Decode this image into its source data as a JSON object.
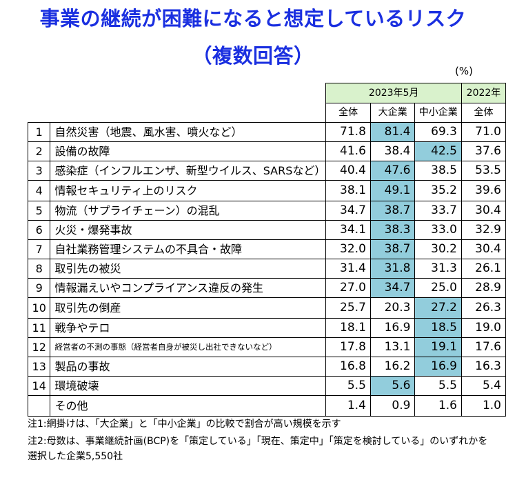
{
  "title_line1": "事業の継続が困難になると想定しているリスク",
  "title_line2": "（複数回答）",
  "unit": "(%)",
  "highlight_color": "#92cddc",
  "header_color": "#d9f2cc",
  "chart_data": {
    "type": "table",
    "group_headers": [
      "2023年5月",
      "2022年"
    ],
    "columns": [
      "全体",
      "大企業",
      "中小企業",
      "全体"
    ],
    "rows": [
      {
        "rank": "1",
        "item": "自然災害（地震、風水害、噴火など）",
        "values": [
          "71.8",
          "81.4",
          "69.3",
          "71.0"
        ],
        "highlight": "large"
      },
      {
        "rank": "2",
        "item": "設備の故障",
        "values": [
          "41.6",
          "38.4",
          "42.5",
          "37.6"
        ],
        "highlight": "sme"
      },
      {
        "rank": "3",
        "item": "感染症（インフルエンザ、新型ウイルス、SARSなど）",
        "values": [
          "40.4",
          "47.6",
          "38.5",
          "53.5"
        ],
        "highlight": "large"
      },
      {
        "rank": "4",
        "item": "情報セキュリティ上のリスク",
        "values": [
          "38.1",
          "49.1",
          "35.2",
          "39.6"
        ],
        "highlight": "large"
      },
      {
        "rank": "5",
        "item": "物流（サプライチェーン）の混乱",
        "values": [
          "34.7",
          "38.7",
          "33.7",
          "30.4"
        ],
        "highlight": "large"
      },
      {
        "rank": "6",
        "item": "火災・爆発事故",
        "values": [
          "34.1",
          "38.3",
          "33.0",
          "32.9"
        ],
        "highlight": "large"
      },
      {
        "rank": "7",
        "item": "自社業務管理システムの不具合・故障",
        "values": [
          "32.0",
          "38.7",
          "30.2",
          "30.4"
        ],
        "highlight": "large"
      },
      {
        "rank": "8",
        "item": "取引先の被災",
        "values": [
          "31.4",
          "31.8",
          "31.3",
          "26.1"
        ],
        "highlight": "large"
      },
      {
        "rank": "9",
        "item": "情報漏えいやコンプライアンス違反の発生",
        "values": [
          "27.0",
          "34.7",
          "25.0",
          "28.9"
        ],
        "highlight": "large"
      },
      {
        "rank": "10",
        "item": "取引先の倒産",
        "values": [
          "25.7",
          "20.3",
          "27.2",
          "26.3"
        ],
        "highlight": "sme"
      },
      {
        "rank": "11",
        "item": "戦争やテロ",
        "values": [
          "18.1",
          "16.9",
          "18.5",
          "19.0"
        ],
        "highlight": "sme"
      },
      {
        "rank": "12",
        "item": "経営者の不測の事態（経営者自身が被災し出社できないなど）",
        "values": [
          "17.8",
          "13.1",
          "19.1",
          "17.6"
        ],
        "highlight": "sme",
        "small": true
      },
      {
        "rank": "13",
        "item": "製品の事故",
        "values": [
          "16.8",
          "16.2",
          "16.9",
          "16.3"
        ],
        "highlight": "sme"
      },
      {
        "rank": "14",
        "item": "環境破壊",
        "values": [
          "5.5",
          "5.6",
          "5.5",
          "5.4"
        ],
        "highlight": "large"
      },
      {
        "rank": "",
        "item": "その他",
        "values": [
          "1.4",
          "0.9",
          "1.6",
          "1.0"
        ],
        "highlight": "none"
      }
    ]
  },
  "notes": [
    "注1:網掛けは、「大企業」と「中小企業」の比較で割合が高い規模を示す",
    "注2:母数は、事業継続計画(BCP)を「策定している」「現在、策定中」「策定を検討している」のいずれかを",
    "選択した企業5,550社"
  ]
}
